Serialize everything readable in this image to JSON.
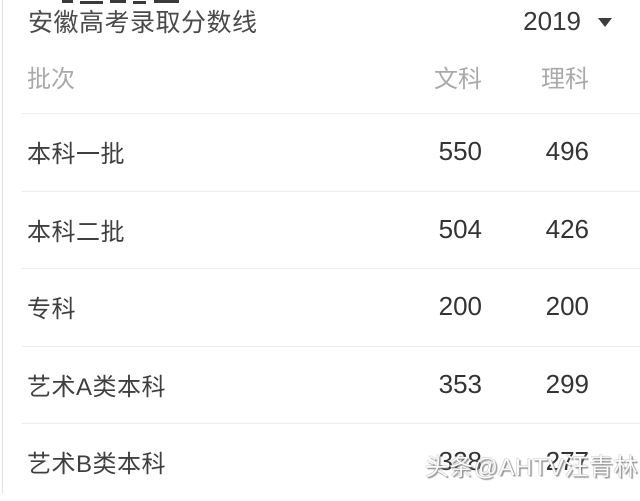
{
  "header": {
    "title": "安徽高考录取分数线",
    "year": "2019",
    "dropdown_icon": "caret-down-icon"
  },
  "table": {
    "columns": {
      "batch": "批次",
      "wenke": "文科",
      "like": "理科"
    },
    "rows": [
      {
        "batch": "本科一批",
        "wenke": "550",
        "like": "496"
      },
      {
        "batch": "本科二批",
        "wenke": "504",
        "like": "426"
      },
      {
        "batch": "专科",
        "wenke": "200",
        "like": "200"
      },
      {
        "batch": "艺术A类本科",
        "wenke": "353",
        "like": "299"
      },
      {
        "batch": "艺术B类本科",
        "wenke": "328",
        "like": "277"
      }
    ]
  },
  "watermark": "头条@AHTV汪青林",
  "colors": {
    "title_text": "#4a4a4a",
    "header_text": "#a9a9a9",
    "body_text": "#3f3f3f",
    "number_text": "#333333",
    "divider": "#ededed",
    "left_border": "#e2e2e2",
    "background": "#ffffff",
    "watermark_text": "#ffffff"
  }
}
